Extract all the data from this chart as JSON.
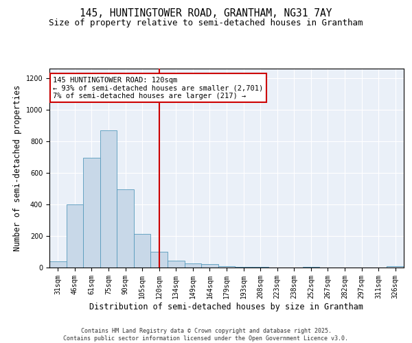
{
  "title_line1": "145, HUNTINGTOWER ROAD, GRANTHAM, NG31 7AY",
  "title_line2": "Size of property relative to semi-detached houses in Grantham",
  "xlabel": "Distribution of semi-detached houses by size in Grantham",
  "ylabel": "Number of semi-detached properties",
  "bar_labels": [
    "31sqm",
    "46sqm",
    "61sqm",
    "75sqm",
    "90sqm",
    "105sqm",
    "120sqm",
    "134sqm",
    "149sqm",
    "164sqm",
    "179sqm",
    "193sqm",
    "208sqm",
    "223sqm",
    "238sqm",
    "252sqm",
    "267sqm",
    "282sqm",
    "297sqm",
    "311sqm",
    "326sqm"
  ],
  "bar_heights": [
    40,
    400,
    695,
    870,
    495,
    215,
    100,
    45,
    25,
    20,
    10,
    5,
    5,
    0,
    0,
    5,
    0,
    0,
    0,
    0,
    10
  ],
  "bar_color": "#c8d8e8",
  "bar_edge_color": "#5599bb",
  "ylim": [
    0,
    1260
  ],
  "yticks": [
    0,
    200,
    400,
    600,
    800,
    1000,
    1200
  ],
  "red_line_index": 6,
  "annotation_line1": "145 HUNTINGTOWER ROAD: 120sqm",
  "annotation_line2": "← 93% of semi-detached houses are smaller (2,701)",
  "annotation_line3": "7% of semi-detached houses are larger (217) →",
  "annotation_box_color": "#ffffff",
  "annotation_box_edge_color": "#cc0000",
  "footnote": "Contains HM Land Registry data © Crown copyright and database right 2025.\nContains public sector information licensed under the Open Government Licence v3.0.",
  "background_color": "#eaf0f8",
  "grid_color": "#ffffff",
  "title_fontsize": 10.5,
  "subtitle_fontsize": 9,
  "axis_label_fontsize": 8.5,
  "tick_fontsize": 7,
  "annotation_fontsize": 7.5,
  "footnote_fontsize": 6
}
